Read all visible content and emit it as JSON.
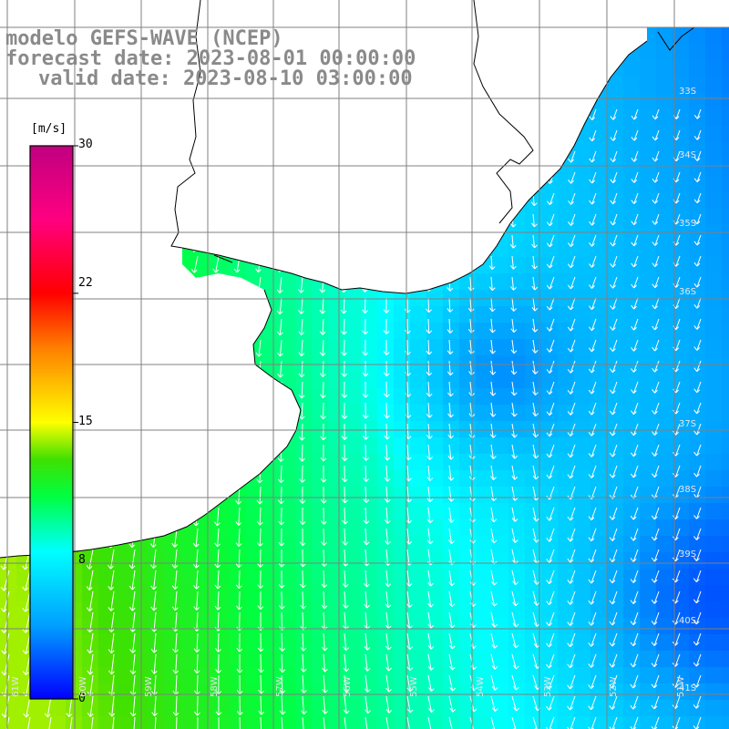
{
  "header": {
    "model": "modelo GEFS-WAVE (NCEP)",
    "forecast": "forecast date: 2023-08-01 00:00:00",
    "valid": "valid date: 2023-08-10 03:00:00"
  },
  "colorbar": {
    "unit": "[m/s]",
    "ticks": [
      "30",
      "22",
      "15",
      "8",
      "0"
    ],
    "tick_values": [
      30,
      22,
      15,
      8,
      0
    ],
    "min": 0,
    "max": 30,
    "colors": [
      "#0000ff",
      "#00a0ff",
      "#00ffff",
      "#00ff40",
      "#40e000",
      "#ffff00",
      "#ff8000",
      "#ff0000",
      "#ff0080",
      "#c00080"
    ]
  },
  "lat_labels": [
    "33S",
    "34S",
    "35S",
    "36S",
    "37S",
    "38S",
    "39S",
    "40S",
    "41S"
  ],
  "lon_labels": [
    "61W",
    "60W",
    "59W",
    "58W",
    "57W",
    "56W",
    "55W",
    "54W",
    "53W",
    "52W",
    "51W"
  ],
  "colors": {
    "land": "#ffffff",
    "grid": "#808080",
    "coast": "#000000",
    "arrow": "#ffffff"
  },
  "legend": {
    "units_word": "[m/s]"
  }
}
